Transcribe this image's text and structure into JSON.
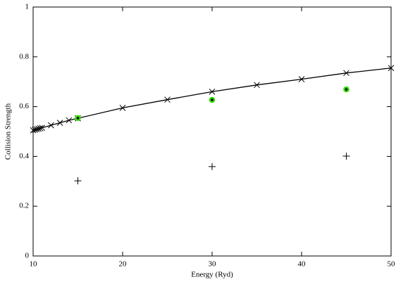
{
  "chart_data": {
    "type": "line",
    "xlabel": "Energy (Ryd)",
    "ylabel": "Collision Strength",
    "xlim": [
      10,
      50
    ],
    "xticks": [
      10,
      20,
      30,
      40,
      50
    ],
    "ylim": [
      0,
      1
    ],
    "yticks": [
      0,
      0.2,
      0.4,
      0.6,
      0.8,
      1
    ],
    "series": [
      {
        "color": "#000000",
        "line": true,
        "marker": "x",
        "x": [
          10,
          10.2,
          10.4,
          10.6,
          10.8,
          11,
          12,
          13,
          14,
          15,
          20,
          25,
          30,
          35,
          40,
          45,
          50
        ],
        "values": [
          0.505,
          0.507,
          0.509,
          0.511,
          0.513,
          0.515,
          0.525,
          0.535,
          0.545,
          0.553,
          0.595,
          0.628,
          0.66,
          0.687,
          0.71,
          0.735,
          0.755
        ]
      },
      {
        "color": "#33dd00",
        "line": false,
        "marker": "circle",
        "x": [
          15,
          30,
          45
        ],
        "values": [
          0.554,
          0.627,
          0.669
        ]
      },
      {
        "color": "#000000",
        "line": false,
        "marker": "plus",
        "x": [
          15,
          30,
          45
        ],
        "values": [
          0.302,
          0.359,
          0.401
        ]
      }
    ]
  }
}
